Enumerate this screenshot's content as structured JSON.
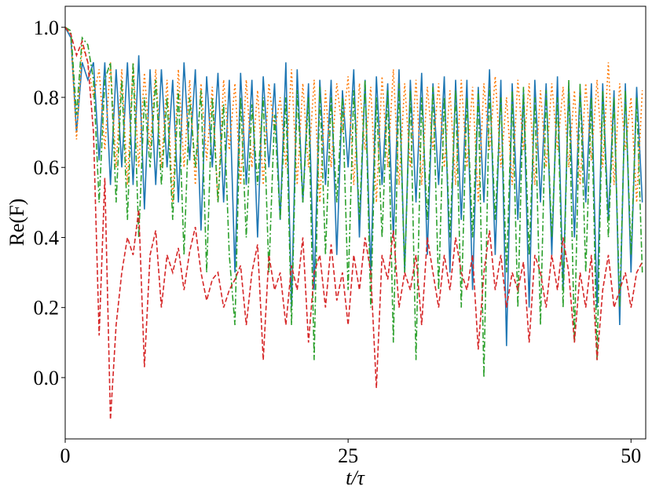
{
  "chart_data": {
    "type": "line",
    "xlabel": "t/τ",
    "ylabel": "Re(F)",
    "xlim": [
      0,
      51.3
    ],
    "ylim": [
      -0.175,
      1.06
    ],
    "xticks": [
      0,
      25,
      50
    ],
    "yticks": [
      {
        "value": 0,
        "label": "0.0"
      },
      0.2,
      0.4,
      0.6,
      0.8,
      {
        "value": 1,
        "label": "1.0"
      }
    ],
    "x": [
      0,
      0.5,
      1,
      1.5,
      2,
      2.5,
      3,
      3.5,
      4,
      4.5,
      5,
      5.5,
      6,
      6.5,
      7,
      7.5,
      8,
      8.5,
      9,
      9.5,
      10,
      10.5,
      11,
      11.5,
      12,
      12.5,
      13,
      13.5,
      14,
      14.5,
      15,
      15.5,
      16,
      16.5,
      17,
      17.5,
      18,
      18.5,
      19,
      19.5,
      20,
      20.5,
      21,
      21.5,
      22,
      22.5,
      23,
      23.5,
      24,
      24.5,
      25,
      25.5,
      26,
      26.5,
      27,
      27.5,
      28,
      28.5,
      29,
      29.5,
      30,
      30.5,
      31,
      31.5,
      32,
      32.5,
      33,
      33.5,
      34,
      34.5,
      35,
      35.5,
      36,
      36.5,
      37,
      37.5,
      38,
      38.5,
      39,
      39.5,
      40,
      40.5,
      41,
      41.5,
      42,
      42.5,
      43,
      43.5,
      44,
      44.5,
      45,
      45.5,
      46,
      46.5,
      47,
      47.5,
      48,
      48.5,
      49,
      49.5,
      50,
      50.5,
      51
    ],
    "series": [
      {
        "color": "#1f77b4",
        "linestyle": "solid",
        "values": [
          1.0,
          0.97,
          0.7,
          0.9,
          0.85,
          0.9,
          0.62,
          0.9,
          0.55,
          0.88,
          0.6,
          0.9,
          0.55,
          0.92,
          0.48,
          0.88,
          0.55,
          0.88,
          0.6,
          0.85,
          0.5,
          0.9,
          0.62,
          0.88,
          0.42,
          0.86,
          0.6,
          0.87,
          0.5,
          0.85,
          0.3,
          0.87,
          0.55,
          0.85,
          0.4,
          0.86,
          0.6,
          0.84,
          0.45,
          0.9,
          0.2,
          0.88,
          0.5,
          0.84,
          0.25,
          0.85,
          0.55,
          0.85,
          0.35,
          0.82,
          0.6,
          0.88,
          0.4,
          0.85,
          0.3,
          0.86,
          0.55,
          0.84,
          0.4,
          0.88,
          0.3,
          0.85,
          0.5,
          0.87,
          0.35,
          0.84,
          0.55,
          0.86,
          0.3,
          0.85,
          0.45,
          0.85,
          0.25,
          0.83,
          0.5,
          0.88,
          0.35,
          0.85,
          0.09,
          0.84,
          0.45,
          0.82,
          0.2,
          0.85,
          0.5,
          0.84,
          0.35,
          0.86,
          0.25,
          0.84,
          0.4,
          0.83,
          0.5,
          0.84,
          0.2,
          0.84,
          0.45,
          0.82,
          0.15,
          0.84,
          0.3,
          0.83,
          0.5
        ]
      },
      {
        "color": "#ff7f0e",
        "linestyle": "dotted",
        "values": [
          1.0,
          0.98,
          0.68,
          0.95,
          0.9,
          0.8,
          0.88,
          0.65,
          0.9,
          0.6,
          0.88,
          0.55,
          0.9,
          0.6,
          0.87,
          0.65,
          0.88,
          0.6,
          0.85,
          0.5,
          0.88,
          0.6,
          0.85,
          0.55,
          0.84,
          0.62,
          0.83,
          0.5,
          0.85,
          0.65,
          0.84,
          0.55,
          0.85,
          0.6,
          0.82,
          0.55,
          0.84,
          0.7,
          0.8,
          0.6,
          0.88,
          0.55,
          0.84,
          0.6,
          0.85,
          0.5,
          0.82,
          0.6,
          0.84,
          0.7,
          0.86,
          0.55,
          0.84,
          0.65,
          0.83,
          0.5,
          0.86,
          0.6,
          0.88,
          0.55,
          0.84,
          0.6,
          0.85,
          0.55,
          0.83,
          0.65,
          0.84,
          0.6,
          0.82,
          0.55,
          0.85,
          0.6,
          0.83,
          0.5,
          0.84,
          0.65,
          0.86,
          0.6,
          0.8,
          0.55,
          0.85,
          0.65,
          0.84,
          0.55,
          0.82,
          0.6,
          0.84,
          0.65,
          0.83,
          0.6,
          0.82,
          0.55,
          0.84,
          0.62,
          0.85,
          0.6,
          0.9,
          0.55,
          0.84,
          0.65,
          0.8,
          0.5,
          0.82
        ]
      },
      {
        "color": "#2ca02c",
        "linestyle": "dashdot",
        "values": [
          1.0,
          0.99,
          0.75,
          0.97,
          0.95,
          0.85,
          0.5,
          0.85,
          0.9,
          0.5,
          0.85,
          0.45,
          0.9,
          0.4,
          0.8,
          0.6,
          0.85,
          0.55,
          0.8,
          0.45,
          0.82,
          0.35,
          0.8,
          0.6,
          0.82,
          0.3,
          0.8,
          0.5,
          0.78,
          0.35,
          0.15,
          0.8,
          0.4,
          0.78,
          0.55,
          0.8,
          0.3,
          0.75,
          0.45,
          0.8,
          0.15,
          0.82,
          0.5,
          0.8,
          0.05,
          0.83,
          0.35,
          0.8,
          0.5,
          0.8,
          0.25,
          0.82,
          0.45,
          0.85,
          0.2,
          0.8,
          0.4,
          0.82,
          0.1,
          0.84,
          0.3,
          0.82,
          0.05,
          0.8,
          0.45,
          0.83,
          0.25,
          0.8,
          0.4,
          0.82,
          0.2,
          0.8,
          0.4,
          0.82,
          0.0,
          0.83,
          0.45,
          0.8,
          0.3,
          0.82,
          0.2,
          0.83,
          0.35,
          0.8,
          0.15,
          0.82,
          0.4,
          0.8,
          0.2,
          0.85,
          0.1,
          0.84,
          0.3,
          0.8,
          0.05,
          0.82,
          0.4,
          0.8,
          0.2,
          0.82,
          0.35,
          0.8,
          0.3
        ]
      },
      {
        "color": "#d62728",
        "linestyle": "dashed",
        "values": [
          1.0,
          0.98,
          0.92,
          0.96,
          0.9,
          0.7,
          0.12,
          0.57,
          -0.12,
          0.15,
          0.3,
          0.4,
          0.35,
          0.48,
          0.03,
          0.35,
          0.42,
          0.2,
          0.35,
          0.3,
          0.37,
          0.25,
          0.36,
          0.43,
          0.3,
          0.22,
          0.28,
          0.3,
          0.2,
          0.25,
          0.28,
          0.32,
          0.15,
          0.3,
          0.38,
          0.05,
          0.35,
          0.25,
          0.3,
          0.15,
          0.32,
          0.25,
          0.4,
          0.1,
          0.3,
          0.35,
          0.2,
          0.38,
          0.22,
          0.3,
          0.15,
          0.35,
          0.25,
          0.4,
          0.3,
          -0.03,
          0.35,
          0.28,
          0.42,
          0.2,
          0.3,
          0.25,
          0.35,
          0.15,
          0.4,
          0.3,
          0.2,
          0.35,
          0.25,
          0.4,
          0.3,
          0.25,
          0.35,
          0.08,
          0.3,
          0.42,
          0.25,
          0.35,
          0.2,
          0.3,
          0.25,
          0.33,
          0.1,
          0.35,
          0.3,
          0.2,
          0.35,
          0.25,
          0.4,
          0.3,
          0.1,
          0.3,
          0.2,
          0.35,
          0.05,
          0.25,
          0.35,
          0.2,
          0.25,
          0.3,
          0.2,
          0.3,
          0.33
        ]
      }
    ]
  }
}
